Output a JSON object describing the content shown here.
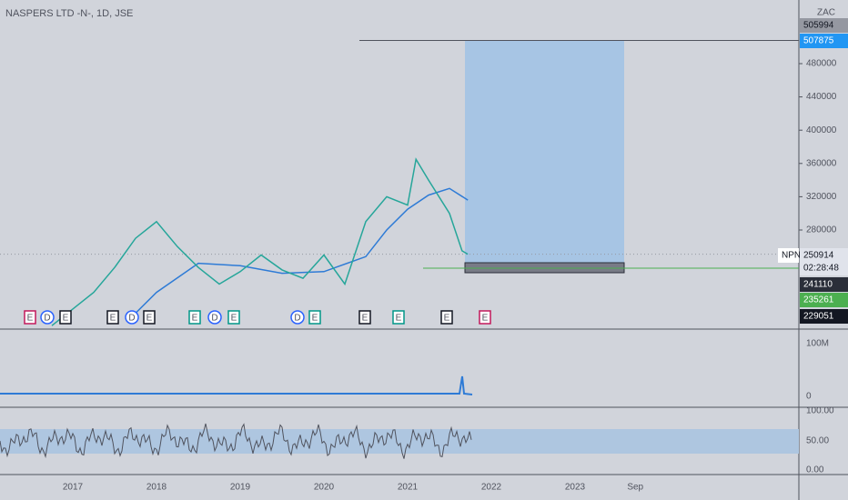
{
  "header": {
    "title": "NASPERS LTD -N-, 1D, JSE",
    "currency": "ZAC"
  },
  "price_axis": {
    "ticks": [
      480000,
      440000,
      400000,
      360000,
      320000,
      280000
    ],
    "labels": {
      "top": "505994",
      "target": "507875",
      "symbol": "NPN",
      "last": "250914",
      "countdown": "02:28:48",
      "l1": "241110",
      "l2": "235261",
      "l3": "229051"
    }
  },
  "price": {
    "x": [
      2016.75,
      2017.0,
      2017.25,
      2017.5,
      2017.75,
      2018.0,
      2018.25,
      2018.5,
      2018.75,
      2019.0,
      2019.25,
      2019.5,
      2019.75,
      2020.0,
      2020.25,
      2020.5,
      2020.75,
      2021.0,
      2021.1,
      2021.25,
      2021.5,
      2021.65,
      2021.72
    ],
    "values": [
      165000,
      185000,
      205000,
      235000,
      270000,
      290000,
      260000,
      235000,
      215000,
      230000,
      250000,
      232000,
      222000,
      250000,
      215000,
      290000,
      320000,
      310000,
      365000,
      340000,
      300000,
      255000,
      250914
    ]
  },
  "ma": {
    "x": [
      2017.75,
      2018.0,
      2018.5,
      2019.0,
      2019.5,
      2020.0,
      2020.5,
      2020.75,
      2021.0,
      2021.25,
      2021.5,
      2021.72
    ],
    "values": [
      180000,
      205000,
      240000,
      237000,
      228000,
      230000,
      248000,
      280000,
      305000,
      322000,
      330000,
      316000
    ]
  },
  "events": [
    "E",
    "D",
    "E",
    "E",
    "D",
    "E",
    "E",
    "D",
    "E",
    "D",
    "E",
    "E",
    "E",
    "E",
    "E"
  ],
  "volume_axis": [
    "100M",
    "0"
  ],
  "rsi_axis": [
    "100.00",
    "50.00",
    "0.00"
  ],
  "time_axis": {
    "labels": [
      "2017",
      "2018",
      "2019",
      "2020",
      "2021",
      "2022",
      "2023",
      "Sep"
    ],
    "x": [
      2017,
      2018,
      2019,
      2020,
      2021,
      2022,
      2023,
      2023.72
    ]
  }
}
